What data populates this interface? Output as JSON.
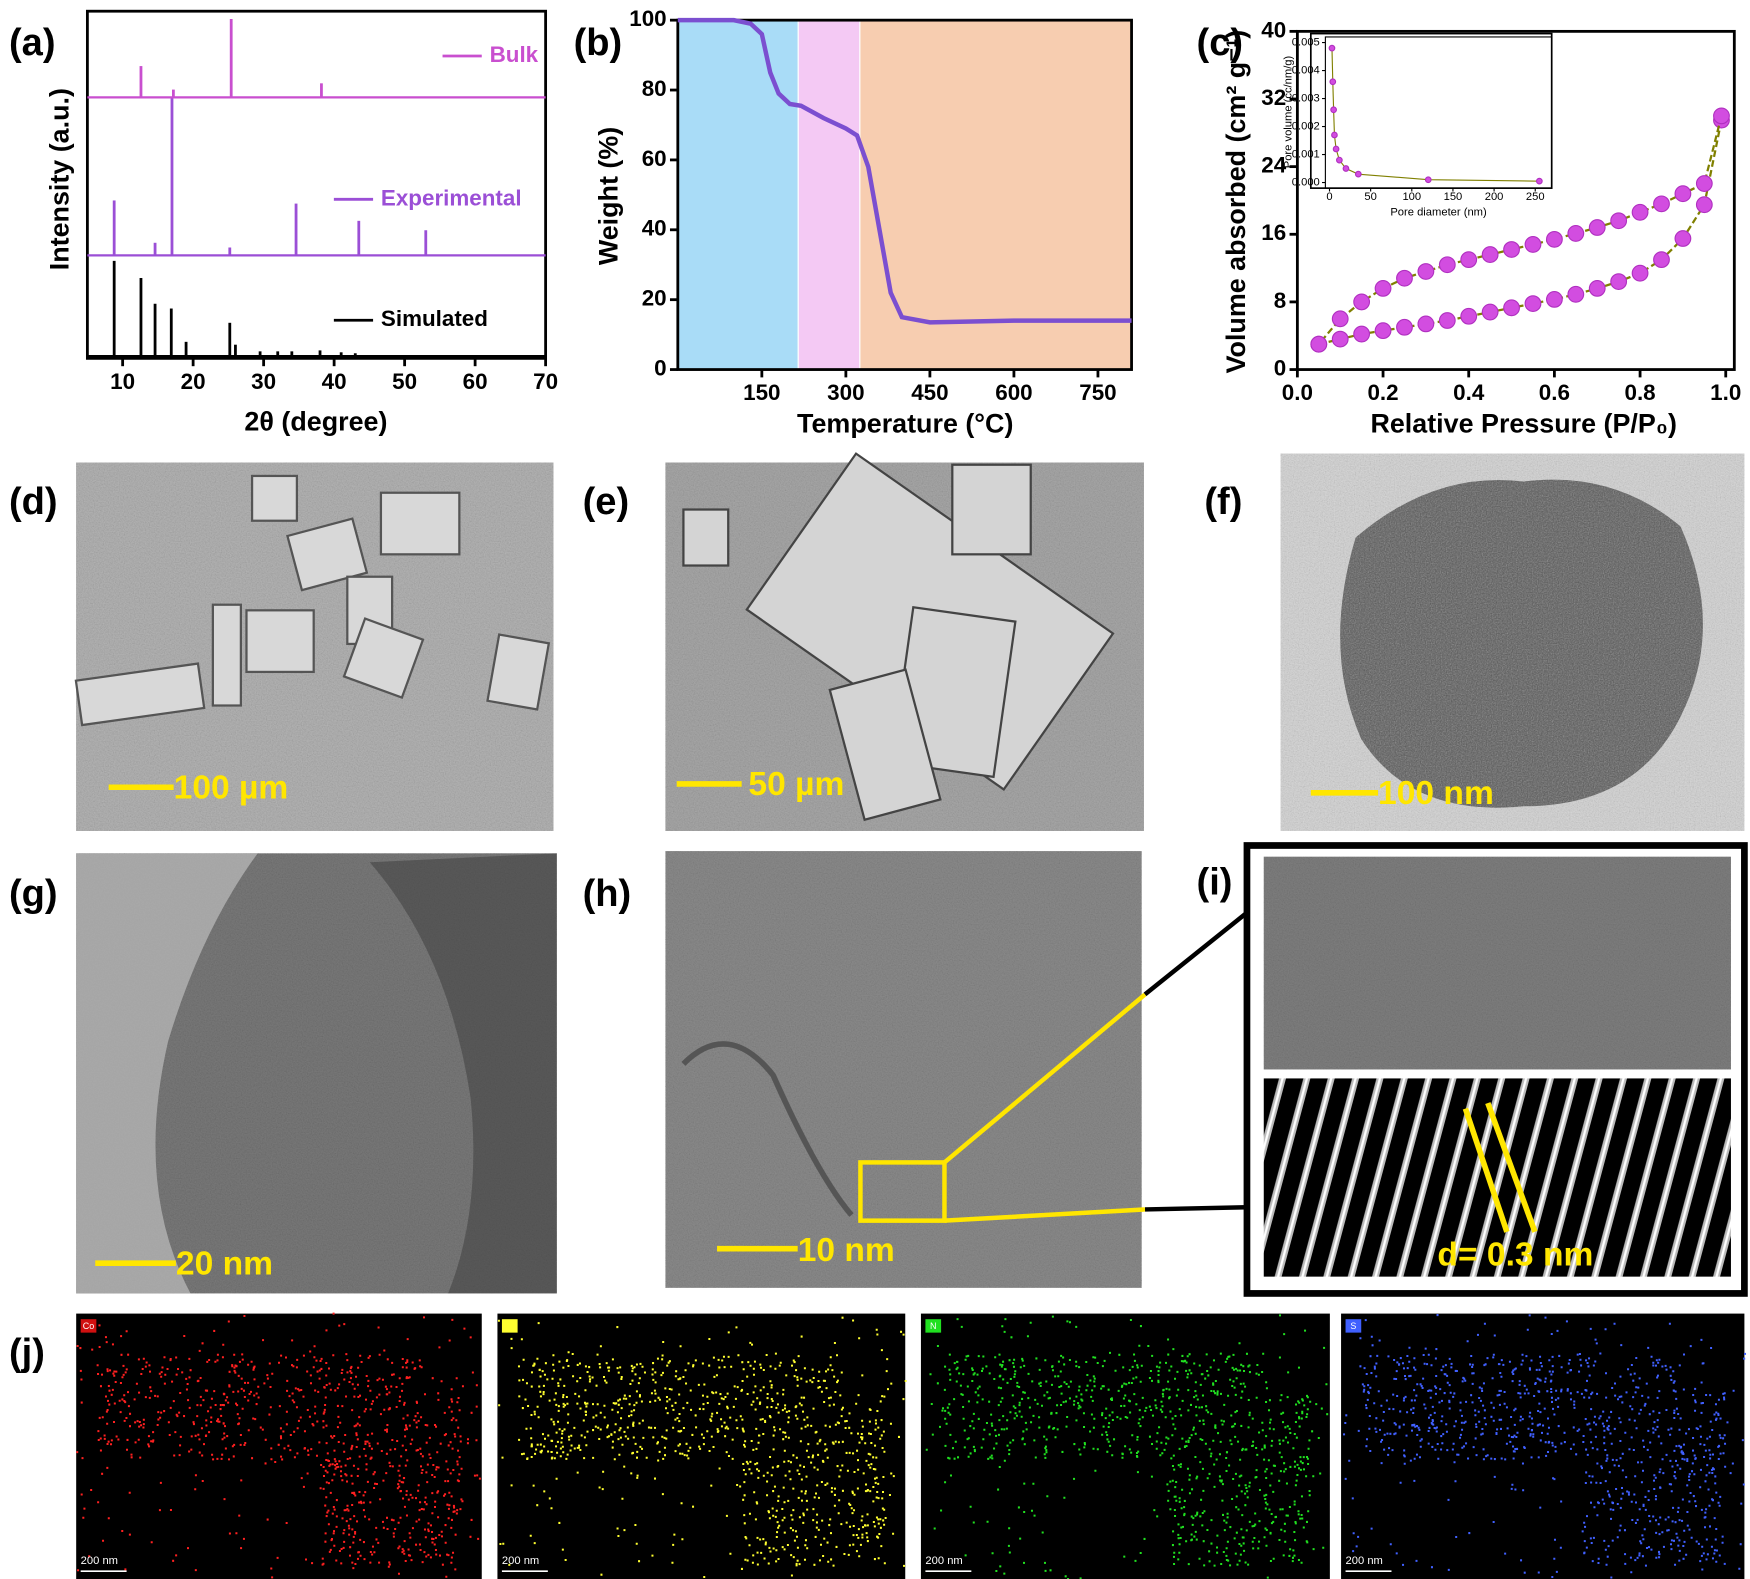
{
  "chart_data": [
    {
      "type": "stem",
      "panel_label": "(a)",
      "ylabel": "Intensity (a.u.)",
      "xlabel": "2θ (degree)",
      "xlim": [
        5,
        70
      ],
      "xticks": [
        10,
        20,
        30,
        40,
        50,
        60,
        70
      ],
      "series": [
        {
          "name": "Bulk",
          "color": "#c94fcf",
          "x": [
            12.6,
            17.2,
            25.4,
            38.2
          ],
          "values": [
            40,
            10,
            100,
            18
          ]
        },
        {
          "name": "Experimental",
          "color": "#9b4fd6",
          "x": [
            8.8,
            14.6,
            17.0,
            25.2,
            34.6,
            43.5,
            53.0
          ],
          "values": [
            35,
            8,
            100,
            5,
            33,
            22,
            16
          ]
        },
        {
          "name": "Simulated",
          "color": "#000000",
          "x": [
            8.8,
            12.6,
            14.6,
            16.9,
            19.0,
            25.2,
            26.0,
            29.5,
            32.0,
            34.0,
            38.0,
            41.0,
            43.0
          ],
          "values": [
            100,
            82,
            55,
            50,
            15,
            35,
            12,
            5,
            5,
            5,
            6,
            4,
            3
          ]
        }
      ]
    },
    {
      "type": "line",
      "panel_label": "(b)",
      "ylabel": "Weight (%)",
      "xlabel": "Temperature (°C)",
      "xlim": [
        0,
        810
      ],
      "xticks": [
        150,
        300,
        450,
        600,
        750
      ],
      "ylim": [
        0,
        100
      ],
      "yticks": [
        0,
        20,
        40,
        60,
        80,
        100
      ],
      "color": "#7b4fd0",
      "regions": [
        {
          "from": 0,
          "to": 215,
          "color": "#a9dcf7"
        },
        {
          "from": 215,
          "to": 325,
          "color": "#f4c9f4"
        },
        {
          "from": 325,
          "to": 810,
          "color": "#f7cdb0"
        }
      ],
      "x": [
        0,
        100,
        130,
        150,
        165,
        180,
        200,
        220,
        260,
        300,
        320,
        340,
        360,
        380,
        400,
        450,
        600,
        810
      ],
      "values": [
        100,
        100,
        99,
        96,
        85,
        79,
        76,
        75.5,
        72,
        69,
        67,
        58,
        40,
        22,
        15,
        13.5,
        14,
        14
      ]
    },
    {
      "type": "line",
      "panel_label": "(c)",
      "ylabel": "Volume absorbed (cm² g⁻¹)",
      "xlabel": "Relative Pressure (P/P₀)",
      "xlim": [
        0,
        1.02
      ],
      "xticks": [
        {
          "value": 0,
          "label": "0.0"
        },
        0.2,
        0.4,
        0.6,
        0.8,
        {
          "value": 1,
          "label": "1.0"
        }
      ],
      "ylim": [
        0,
        40
      ],
      "yticks": [
        0,
        8,
        16,
        24,
        32,
        40
      ],
      "markers": true,
      "series": [
        {
          "color": "#808000",
          "marker": "#d24de0",
          "x": [
            0.05,
            0.1,
            0.15,
            0.2,
            0.25,
            0.3,
            0.35,
            0.4,
            0.45,
            0.5,
            0.55,
            0.6,
            0.65,
            0.7,
            0.75,
            0.8,
            0.85,
            0.9,
            0.95,
            0.99
          ],
          "values": [
            3,
            3.6,
            4.2,
            4.6,
            5,
            5.4,
            5.8,
            6.3,
            6.8,
            7.3,
            7.8,
            8.3,
            8.9,
            9.6,
            10.4,
            11.4,
            13,
            15.5,
            19.5,
            29.5
          ]
        },
        {
          "color": "#808000",
          "marker": "#d24de0",
          "x": [
            0.99,
            0.95,
            0.9,
            0.85,
            0.8,
            0.75,
            0.7,
            0.65,
            0.6,
            0.55,
            0.5,
            0.45,
            0.4,
            0.35,
            0.3,
            0.25,
            0.2,
            0.15,
            0.1,
            0.05
          ],
          "values": [
            30,
            22,
            20.8,
            19.6,
            18.6,
            17.6,
            16.8,
            16.1,
            15.4,
            14.8,
            14.2,
            13.6,
            13,
            12.4,
            11.6,
            10.8,
            9.6,
            8,
            6,
            3
          ]
        }
      ]
    },
    {
      "type": "line",
      "ylabel": "Pore volume (cc/nm/g)",
      "xlabel": "Pore diameter (nm)",
      "xlim": [
        -5,
        270
      ],
      "xticks": [
        0,
        50,
        100,
        150,
        200,
        250
      ],
      "ylim": [
        -0.0002,
        0.0052
      ],
      "yticks": [
        {
          "value": 0,
          "label": "0.000"
        },
        {
          "value": 0.001,
          "label": "0.001"
        },
        {
          "value": 0.002,
          "label": "0.002"
        },
        {
          "value": 0.003,
          "label": "0.003"
        },
        {
          "value": 0.004,
          "label": "0.004"
        },
        {
          "value": 0.005,
          "label": "0.005"
        }
      ],
      "markers": true,
      "series": [
        {
          "color": "#808000",
          "marker": "#d24de0",
          "x": [
            3,
            4,
            5,
            6,
            8,
            12,
            20,
            35,
            120,
            255
          ],
          "values": [
            0.0048,
            0.0036,
            0.0026,
            0.0017,
            0.0012,
            0.0008,
            0.0005,
            0.0003,
            0.0001,
            5e-05
          ]
        }
      ]
    }
  ],
  "panels": {
    "d": {
      "label": "(d)",
      "scale_bar": "100 µm"
    },
    "e": {
      "label": "(e)",
      "scale_bar": "50 µm"
    },
    "f": {
      "label": "(f)",
      "scale_bar": "100 nm"
    },
    "g": {
      "label": "(g)",
      "scale_bar": "20 nm"
    },
    "h": {
      "label": "(h)",
      "scale_bar": "10 nm"
    },
    "i": {
      "label": "(i)",
      "spacing": "d= 0.3 nm"
    },
    "j": {
      "label": "(j)",
      "maps": [
        {
          "element": "Co",
          "scale_bar": "200 nm"
        },
        {
          "scale_bar": "200 nm"
        },
        {
          "element": "N",
          "scale_bar": "200 nm"
        },
        {
          "element": "S",
          "scale_bar": "200 nm"
        }
      ]
    }
  }
}
